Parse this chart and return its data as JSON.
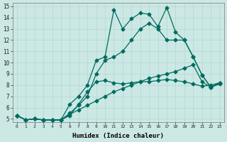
{
  "xlabel": "Humidex (Indice chaleur)",
  "bg_color": "#cce8e4",
  "grid_color": "#b0d8d0",
  "line_color": "#006b60",
  "xlim": [
    -0.5,
    23.5
  ],
  "ylim": [
    4.7,
    15.3
  ],
  "xticks": [
    0,
    1,
    2,
    3,
    4,
    5,
    6,
    7,
    8,
    9,
    10,
    11,
    12,
    13,
    14,
    15,
    16,
    17,
    18,
    19,
    20,
    21,
    22,
    23
  ],
  "yticks": [
    5,
    6,
    7,
    8,
    9,
    10,
    11,
    12,
    13,
    14,
    15
  ],
  "line1_x": [
    0,
    1,
    2,
    3,
    4,
    5,
    6,
    7,
    8,
    9,
    10,
    11,
    12,
    13,
    14,
    15,
    16,
    17,
    18,
    19,
    20,
    21,
    22,
    23
  ],
  "line1_y": [
    5.3,
    4.9,
    5.0,
    4.9,
    4.9,
    4.9,
    5.3,
    6.3,
    7.4,
    8.3,
    8.4,
    8.2,
    8.1,
    8.2,
    8.3,
    8.3,
    8.4,
    8.5,
    8.4,
    8.3,
    8.1,
    7.9,
    8.0,
    8.2
  ],
  "line2_x": [
    0,
    1,
    2,
    3,
    4,
    5,
    6,
    7,
    8,
    9,
    10,
    11,
    12,
    13,
    14,
    15,
    16,
    17,
    18,
    19,
    20,
    21,
    22,
    23
  ],
  "line2_y": [
    5.3,
    4.9,
    5.0,
    4.9,
    4.9,
    4.9,
    5.4,
    5.8,
    6.2,
    6.6,
    7.0,
    7.4,
    7.7,
    8.0,
    8.3,
    8.6,
    8.8,
    9.0,
    9.2,
    9.5,
    9.8,
    8.3,
    7.8,
    8.1
  ],
  "line3_x": [
    0,
    1,
    2,
    3,
    4,
    5,
    6,
    7,
    8,
    9,
    10,
    11,
    12,
    13,
    14,
    15,
    16,
    17,
    18,
    19,
    20,
    21,
    22,
    23
  ],
  "line3_y": [
    5.3,
    4.9,
    5.0,
    4.9,
    4.9,
    4.9,
    5.5,
    6.2,
    7.0,
    9.0,
    10.2,
    10.5,
    11.0,
    12.0,
    13.0,
    13.5,
    13.0,
    12.0,
    12.0,
    12.0,
    10.5,
    8.9,
    7.8,
    8.2
  ],
  "line4_x": [
    0,
    1,
    2,
    3,
    4,
    5,
    6,
    7,
    8,
    9,
    10,
    11,
    12,
    13,
    14,
    15,
    16,
    17,
    18,
    19,
    20,
    21,
    22,
    23
  ],
  "line4_y": [
    5.3,
    4.9,
    5.0,
    4.9,
    4.9,
    4.9,
    6.3,
    7.0,
    8.0,
    10.2,
    10.5,
    14.7,
    13.0,
    13.9,
    14.4,
    14.3,
    13.2,
    14.9,
    12.7,
    12.0,
    10.5,
    8.9,
    7.8,
    8.2
  ]
}
